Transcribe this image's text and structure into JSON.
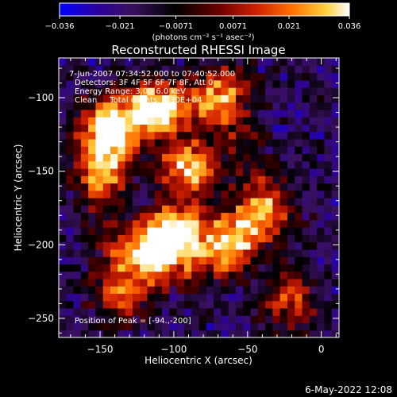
{
  "chart_data": {
    "type": "heatmap",
    "title": "Reconstructed RHESSI Image",
    "xlabel": "Heliocentric X (arcsec)",
    "ylabel": "Heliocentric Y (arcsec)",
    "xlim": [
      -178,
      12
    ],
    "ylim": [
      -263,
      -73
    ],
    "x_ticks": [
      -150,
      -100,
      -50,
      0
    ],
    "y_ticks": [
      -100,
      -150,
      -200,
      -250
    ],
    "x_tick_labels": [
      "−150",
      "−100",
      "−50",
      "0"
    ],
    "y_tick_labels": [
      "−100",
      "−150",
      "−200",
      "−250"
    ],
    "colorbar": {
      "min": -0.036,
      "max": 0.036,
      "tick_labels": [
        "−0.036",
        "−0.021",
        "−0.0071",
        "0.0071",
        "0.021",
        "0.036"
      ],
      "units_label": "(photons cm⁻² s⁻¹ asec⁻²)",
      "colors": [
        "#0000ff",
        "#2a00a0",
        "#3a1060",
        "#000000",
        "#6a0000",
        "#d02000",
        "#ff7000",
        "#ffd040",
        "#ffffff"
      ]
    },
    "info_lines": [
      "7-Jun-2007 07:34:52.000 to 07:40:52.000",
      "Detectors: 3F 4F 5F 6F 7F 8F, Att 0",
      "Energy Range: 3.0 - 6.0 keV",
      "Clean     Total counts: 4.30E+04"
    ],
    "peak_label": "Position of Peak = [-94.,-200]",
    "peak": [
      -94,
      -200
    ],
    "bright_features": [
      {
        "x": -100,
        "y": -195,
        "intensity": 0.036
      },
      {
        "x": -92,
        "y": -150,
        "intensity": 0.028
      },
      {
        "x": -115,
        "y": -110,
        "intensity": 0.03
      },
      {
        "x": -148,
        "y": -120,
        "intensity": 0.026
      },
      {
        "x": -70,
        "y": -100,
        "intensity": 0.02
      },
      {
        "x": -120,
        "y": -205,
        "intensity": 0.022
      },
      {
        "x": -65,
        "y": -200,
        "intensity": 0.018
      },
      {
        "x": -150,
        "y": -150,
        "intensity": 0.016
      },
      {
        "x": -40,
        "y": -180,
        "intensity": 0.014
      },
      {
        "x": -140,
        "y": -235,
        "intensity": 0.012
      },
      {
        "x": -25,
        "y": -240,
        "intensity": 0.01
      }
    ]
  },
  "footer": {
    "date": "6-May-2022 12:08"
  }
}
